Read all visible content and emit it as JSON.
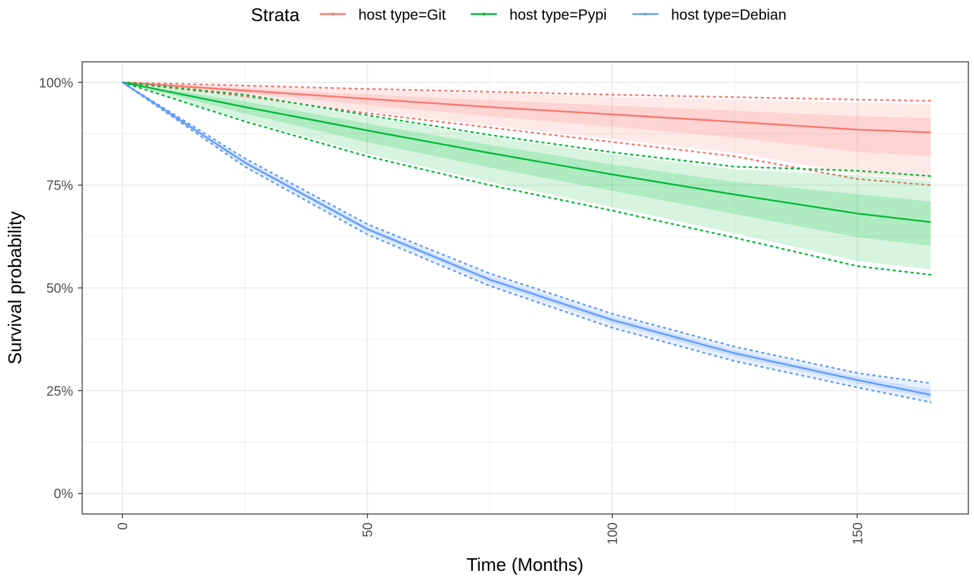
{
  "chart_data": {
    "type": "line",
    "title": "",
    "xlabel": "Time (Months)",
    "ylabel": "Survival probability",
    "xlim": [
      -8.2,
      172.7
    ],
    "ylim": [
      -0.05,
      1.05
    ],
    "x_ticks": [
      0,
      50,
      100,
      150
    ],
    "x_tick_labels": [
      "0",
      "50",
      "100",
      "150"
    ],
    "y_ticks": [
      0,
      0.25,
      0.5,
      0.75,
      1.0
    ],
    "y_tick_labels": [
      "0%",
      "25%",
      "50%",
      "75%",
      "100%"
    ],
    "grid": true,
    "legend": {
      "title": "Strata",
      "position": "top",
      "entries": [
        "host type=Git",
        "host type=Pypi",
        "host type=Debian"
      ]
    },
    "series": [
      {
        "name": "host type=Git",
        "color": "#F8766D",
        "x": [
          0,
          25,
          50,
          75,
          100,
          125,
          150,
          165
        ],
        "y": [
          1.0,
          0.98,
          0.96,
          0.94,
          0.922,
          0.904,
          0.885,
          0.878
        ],
        "ci_upper": [
          1.0,
          0.992,
          0.984,
          0.977,
          0.97,
          0.964,
          0.958,
          0.955
        ],
        "ci_lower": [
          1.0,
          0.966,
          0.925,
          0.89,
          0.855,
          0.82,
          0.765,
          0.75
        ]
      },
      {
        "name": "host type=Pypi",
        "color": "#00BA38",
        "x": [
          0,
          25,
          50,
          75,
          100,
          125,
          150,
          165
        ],
        "y": [
          1.0,
          0.94,
          0.883,
          0.828,
          0.776,
          0.727,
          0.681,
          0.66
        ],
        "ci_upper": [
          1.0,
          0.97,
          0.92,
          0.872,
          0.83,
          0.795,
          0.785,
          0.772
        ],
        "ci_lower": [
          1.0,
          0.905,
          0.82,
          0.75,
          0.688,
          0.622,
          0.553,
          0.532
        ]
      },
      {
        "name": "host type=Debian",
        "color": "#619CFF",
        "x": [
          0,
          25,
          50,
          75,
          100,
          125,
          150,
          165
        ],
        "y": [
          1.0,
          0.805,
          0.643,
          0.52,
          0.422,
          0.341,
          0.276,
          0.24
        ],
        "ci_upper": [
          1.0,
          0.815,
          0.655,
          0.535,
          0.437,
          0.357,
          0.293,
          0.268
        ],
        "ci_lower": [
          1.0,
          0.795,
          0.63,
          0.505,
          0.403,
          0.322,
          0.258,
          0.222
        ]
      }
    ]
  }
}
